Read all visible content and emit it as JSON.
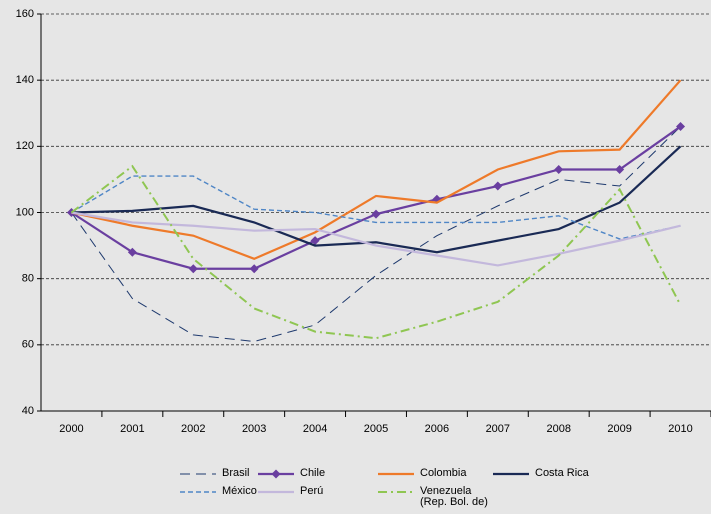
{
  "chart_data": {
    "type": "line",
    "categories": [
      "2000",
      "2001",
      "2002",
      "2003",
      "2004",
      "2005",
      "2006",
      "2007",
      "2008",
      "2009",
      "2010"
    ],
    "ylim": [
      40,
      160
    ],
    "yticks": [
      40,
      60,
      80,
      100,
      120,
      140,
      160
    ],
    "grid": true,
    "series": [
      {
        "name": "Brasil",
        "color": "#1f3a6e",
        "line_style": "longdash",
        "values": [
          100,
          74,
          63,
          61,
          66,
          81,
          93,
          102,
          110,
          108,
          126
        ]
      },
      {
        "name": "Chile",
        "color": "#6a3fa0",
        "line_style": "solid",
        "marker": "diamond",
        "values": [
          100,
          88,
          83,
          83,
          91.5,
          99.5,
          104,
          108,
          113,
          113,
          126
        ]
      },
      {
        "name": "Colombia",
        "color": "#ee7a2a",
        "line_style": "solid",
        "values": [
          100,
          96,
          93,
          86,
          94,
          105,
          103,
          113,
          118.5,
          119,
          140
        ]
      },
      {
        "name": "Costa Rica",
        "color": "#1a2a55",
        "line_style": "solid",
        "values": [
          100,
          100.5,
          102,
          97,
          90,
          91,
          88,
          91.5,
          95,
          103,
          120
        ]
      },
      {
        "name": "México",
        "color": "#4f86c6",
        "line_style": "dashed",
        "values": [
          100,
          111,
          111,
          101,
          100,
          97,
          97,
          97,
          99,
          92,
          96
        ]
      },
      {
        "name": "Perú",
        "color": "#c3b8dc",
        "line_style": "solid",
        "values": [
          100,
          97,
          96,
          94.5,
          95,
          90,
          87,
          84,
          87.5,
          91.5,
          96
        ]
      },
      {
        "name": "Venezuela (Rep. Bol. de)",
        "color": "#8fc652",
        "line_style": "dashdot",
        "values": [
          100,
          114,
          86,
          71,
          64,
          62,
          67,
          73,
          87,
          107,
          72
        ]
      }
    ]
  }
}
